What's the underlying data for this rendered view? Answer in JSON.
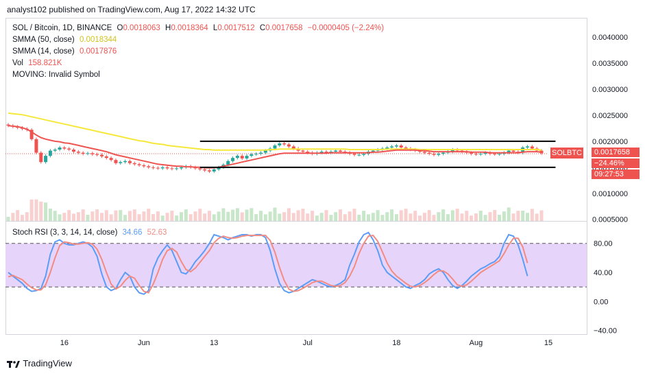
{
  "header": {
    "publish_text": "analyst102 published on TradingView.com, Aug 17, 2022 14:32 UTC"
  },
  "legend": {
    "symbol": "SOL / Bitcoin, 1D, BINANCE",
    "o_label": "O",
    "o_value": "0.0018063",
    "h_label": "H",
    "h_value": "0.0018364",
    "l_label": "L",
    "l_value": "0.0017512",
    "c_label": "C",
    "c_value": "0.0017658",
    "change": "−0.0000405 (−2.24%)",
    "smma50_label": "SMMA (50, close)",
    "smma50_value": "0.0018344",
    "smma14_label": "SMMA (14, close)",
    "smma14_value": "0.0017876",
    "vol_label": "Vol",
    "vol_value": "158.821K",
    "moving_label": "MOVING: Invalid Symbol"
  },
  "stoch_legend": {
    "label": "Stoch RSI (3, 3, 14, 14, close)",
    "k_value": "34.66",
    "d_value": "52.63"
  },
  "price_badge": {
    "symbol": "SOLBTC",
    "price": "0.0017658",
    "change": "−24.46%",
    "countdown": "09:27:53"
  },
  "footer": {
    "brand": "TradingView"
  },
  "colors": {
    "up": "#26a69a",
    "down": "#ef5350",
    "smma50": "#f5e83b",
    "smma14": "#ef5350",
    "stoch_k": "#5b9cf6",
    "stoch_d": "#f28b82",
    "stoch_band": "#e7d4fb",
    "vol_up": "#c8e6c9",
    "vol_down": "#f8d0d0",
    "channel": "#000000"
  },
  "chart_data": [
    {
      "type": "candlestick",
      "title": "SOL / Bitcoin, 1D, BINANCE",
      "x_ticks": [
        "16",
        "Jun",
        "13",
        "Jul",
        "18",
        "Aug",
        "15"
      ],
      "y_ticks": [
        "0.0040000",
        "0.0035000",
        "0.0030000",
        "0.0025000",
        "0.0020000",
        "0.0015000",
        "0.0010000",
        "0.0005000"
      ],
      "ylim": [
        0.00047,
        0.00437
      ],
      "grid": false,
      "closes": [
        0.0023,
        0.00228,
        0.00226,
        0.00224,
        0.00222,
        0.00204,
        0.00178,
        0.0016,
        0.00172,
        0.00182,
        0.00184,
        0.00188,
        0.00186,
        0.00184,
        0.0018,
        0.00178,
        0.00176,
        0.00177,
        0.00175,
        0.00174,
        0.00171,
        0.00168,
        0.00164,
        0.00158,
        0.0016,
        0.00162,
        0.00158,
        0.00156,
        0.00154,
        0.00152,
        0.0015,
        0.00149,
        0.00148,
        0.0015,
        0.00148,
        0.00147,
        0.00148,
        0.0015,
        0.00152,
        0.0015,
        0.00148,
        0.00146,
        0.00144,
        0.00142,
        0.00146,
        0.0015,
        0.00155,
        0.00162,
        0.00168,
        0.00172,
        0.00167,
        0.00172,
        0.00175,
        0.00176,
        0.00178,
        0.00182,
        0.00186,
        0.00192,
        0.00196,
        0.00194,
        0.0019,
        0.00186,
        0.00182,
        0.0018,
        0.00178,
        0.00176,
        0.00178,
        0.0018,
        0.00178,
        0.0018,
        0.00182,
        0.0018,
        0.00178,
        0.00176,
        0.00174,
        0.00174,
        0.00176,
        0.0018,
        0.00182,
        0.00184,
        0.00186,
        0.00188,
        0.0019,
        0.00192,
        0.00188,
        0.00186,
        0.00184,
        0.00182,
        0.0018,
        0.00178,
        0.00176,
        0.00174,
        0.00176,
        0.00178,
        0.0018,
        0.00184,
        0.00182,
        0.0018,
        0.00178,
        0.00176,
        0.00175,
        0.00176,
        0.00178,
        0.00176,
        0.00175,
        0.00176,
        0.00178,
        0.00182,
        0.0018,
        0.00178,
        0.00188,
        0.0019,
        0.00186,
        0.00182,
        0.00177
      ],
      "smma50": [
        0.00254,
        0.00253,
        0.00252,
        0.00251,
        0.00249,
        0.00247,
        0.00245,
        0.00243,
        0.00241,
        0.00239,
        0.00237,
        0.00235,
        0.00233,
        0.00231,
        0.00229,
        0.00227,
        0.00225,
        0.00223,
        0.00221,
        0.00219,
        0.00217,
        0.00215,
        0.00213,
        0.00211,
        0.00209,
        0.00207,
        0.00205,
        0.00203,
        0.00201,
        0.002,
        0.00198,
        0.00196,
        0.00195,
        0.00194,
        0.00192,
        0.00191,
        0.0019,
        0.00189,
        0.00188,
        0.00187,
        0.00186,
        0.00185,
        0.00184,
        0.00184,
        0.00183,
        0.00183,
        0.00183,
        0.00183,
        0.00183,
        0.00183,
        0.00183,
        0.00183,
        0.00183,
        0.00183,
        0.00183,
        0.00183,
        0.00184,
        0.00184,
        0.00185,
        0.00185,
        0.00185,
        0.00185,
        0.00185,
        0.00185,
        0.00185,
        0.00185,
        0.00185,
        0.00185,
        0.00185,
        0.00185,
        0.00185,
        0.00185,
        0.00185,
        0.00184,
        0.00184,
        0.00184,
        0.00184,
        0.00184,
        0.00184,
        0.00184,
        0.00184,
        0.00185,
        0.00185,
        0.00185,
        0.00185,
        0.00185,
        0.00185,
        0.00185,
        0.00184,
        0.00184,
        0.00184,
        0.00184,
        0.00184,
        0.00184,
        0.00184,
        0.00184,
        0.00184,
        0.00184,
        0.00184,
        0.00184,
        0.00184,
        0.00184,
        0.00184,
        0.00184,
        0.00184,
        0.00184,
        0.00184,
        0.00184,
        0.00184,
        0.00184,
        0.00184,
        0.00184,
        0.00184,
        0.00184,
        0.00183
      ],
      "smma14": [
        0.0023,
        0.00229,
        0.00228,
        0.00226,
        0.00223,
        0.00218,
        0.00212,
        0.00207,
        0.00204,
        0.00202,
        0.002,
        0.00199,
        0.00197,
        0.00196,
        0.00194,
        0.00192,
        0.0019,
        0.00188,
        0.00186,
        0.00184,
        0.00182,
        0.0018,
        0.00177,
        0.00174,
        0.00172,
        0.0017,
        0.00168,
        0.00166,
        0.00164,
        0.00162,
        0.0016,
        0.00158,
        0.00156,
        0.00155,
        0.00154,
        0.00153,
        0.00152,
        0.00152,
        0.00151,
        0.00151,
        0.0015,
        0.0015,
        0.00149,
        0.00149,
        0.00149,
        0.0015,
        0.00152,
        0.00154,
        0.00156,
        0.00158,
        0.0016,
        0.00162,
        0.00164,
        0.00166,
        0.00168,
        0.0017,
        0.00172,
        0.00174,
        0.00176,
        0.00177,
        0.00177,
        0.00177,
        0.00177,
        0.00177,
        0.00177,
        0.00177,
        0.00177,
        0.00177,
        0.00177,
        0.00178,
        0.00178,
        0.00178,
        0.00178,
        0.00178,
        0.00178,
        0.00178,
        0.00178,
        0.00178,
        0.00179,
        0.00179,
        0.0018,
        0.00181,
        0.00182,
        0.00183,
        0.00183,
        0.00183,
        0.00183,
        0.00183,
        0.00182,
        0.00182,
        0.00181,
        0.0018,
        0.0018,
        0.0018,
        0.0018,
        0.0018,
        0.0018,
        0.0018,
        0.0018,
        0.00179,
        0.00179,
        0.00179,
        0.00179,
        0.00178,
        0.00178,
        0.00178,
        0.00178,
        0.00178,
        0.00178,
        0.00178,
        0.00179,
        0.0018,
        0.0018,
        0.0018,
        0.00179
      ],
      "channel_upper": [
        [
          41,
          0.002
        ],
        [
          117,
          0.002
        ]
      ],
      "channel_lower": [
        [
          41,
          0.0015
        ],
        [
          117,
          0.0015
        ]
      ]
    },
    {
      "type": "line",
      "title": "Stoch RSI (3, 3, 14, 14, close)",
      "y_ticks": [
        "80.00",
        "40.00",
        "0.00",
        "−40.00"
      ],
      "ylim": [
        -45,
        110
      ],
      "bands": [
        20,
        80
      ],
      "series": [
        {
          "values": [
            40,
            35,
            30,
            25,
            18,
            14,
            15,
            18,
            35,
            65,
            82,
            85,
            80,
            78,
            78,
            80,
            82,
            80,
            75,
            62,
            38,
            20,
            15,
            18,
            30,
            40,
            35,
            20,
            12,
            10,
            15,
            45,
            60,
            70,
            78,
            70,
            55,
            40,
            38,
            45,
            55,
            62,
            70,
            80,
            92,
            90,
            88,
            85,
            88,
            90,
            92,
            92,
            90,
            92,
            92,
            88,
            70,
            45,
            25,
            15,
            12,
            14,
            18,
            22,
            26,
            30,
            28,
            25,
            22,
            20,
            22,
            25,
            30,
            50,
            65,
            82,
            92,
            95,
            85,
            70,
            50,
            40,
            35,
            30,
            25,
            20,
            18,
            22,
            25,
            30,
            38,
            42,
            45,
            40,
            30,
            22,
            18,
            22,
            28,
            35,
            40,
            45,
            48,
            52,
            55,
            62,
            80,
            92,
            90,
            78,
            58,
            35
          ]
        },
        {
          "values": [
            34,
            36,
            33,
            30,
            24,
            19,
            16,
            16,
            23,
            40,
            60,
            77,
            82,
            81,
            79,
            79,
            80,
            81,
            79,
            72,
            58,
            40,
            24,
            17,
            21,
            29,
            35,
            32,
            22,
            14,
            12,
            24,
            40,
            58,
            70,
            73,
            68,
            55,
            44,
            41,
            46,
            54,
            62,
            70,
            81,
            87,
            90,
            88,
            87,
            88,
            90,
            91,
            91,
            91,
            91,
            91,
            84,
            68,
            47,
            29,
            17,
            14,
            15,
            18,
            22,
            26,
            28,
            28,
            25,
            22,
            21,
            22,
            26,
            35,
            48,
            66,
            80,
            90,
            91,
            83,
            68,
            53,
            42,
            35,
            30,
            25,
            21,
            20,
            22,
            26,
            31,
            37,
            42,
            42,
            38,
            31,
            23,
            21,
            23,
            28,
            34,
            40,
            44,
            48,
            52,
            56,
            66,
            78,
            87,
            87,
            75,
            53
          ]
        }
      ]
    }
  ]
}
